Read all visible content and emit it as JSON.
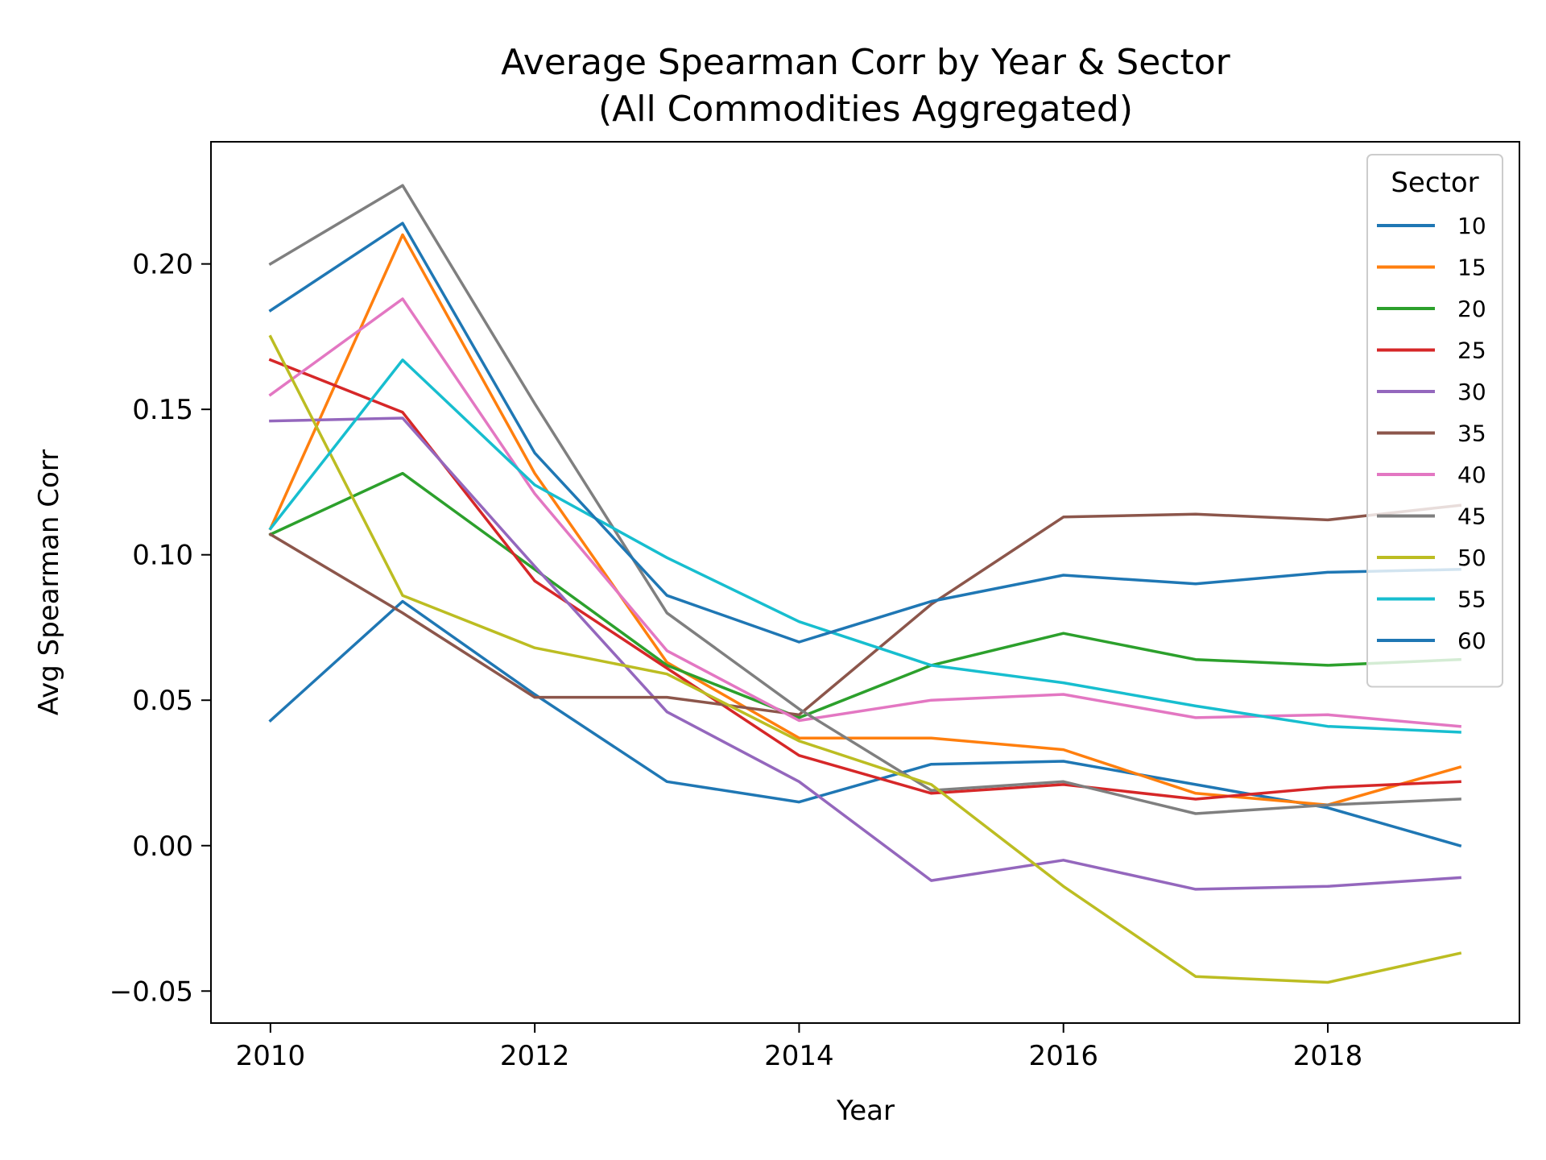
{
  "chart_data": {
    "type": "line",
    "title": "Average Spearman Corr by Year & Sector",
    "subtitle": "(All Commodities Aggregated)",
    "xlabel": "Year",
    "ylabel": "Avg Spearman Corr",
    "xlim": [
      2009.55,
      2019.45
    ],
    "ylim": [
      -0.061,
      0.242
    ],
    "xticks": [
      2010,
      2012,
      2014,
      2016,
      2018
    ],
    "yticks": [
      -0.05,
      0.0,
      0.05,
      0.1,
      0.15,
      0.2
    ],
    "ytick_labels": [
      "−0.05",
      "0.00",
      "0.05",
      "0.10",
      "0.15",
      "0.20"
    ],
    "grid": false,
    "legend": {
      "title": "Sector",
      "placement": "top-right"
    },
    "x": [
      2010,
      2011,
      2012,
      2013,
      2014,
      2015,
      2016,
      2017,
      2018,
      2019
    ],
    "series": [
      {
        "name": "10",
        "color": "#1f77b4",
        "values": [
          0.043,
          0.084,
          0.052,
          0.022,
          0.015,
          0.028,
          0.029,
          0.021,
          0.013,
          0.0
        ]
      },
      {
        "name": "15",
        "color": "#ff7f0e",
        "values": [
          0.109,
          0.21,
          0.128,
          0.063,
          0.037,
          0.037,
          0.033,
          0.018,
          0.014,
          0.027
        ]
      },
      {
        "name": "20",
        "color": "#2ca02c",
        "values": [
          0.107,
          0.128,
          0.095,
          0.062,
          0.044,
          0.062,
          0.073,
          0.064,
          0.062,
          0.064
        ]
      },
      {
        "name": "25",
        "color": "#d62728",
        "values": [
          0.167,
          0.149,
          0.091,
          0.061,
          0.031,
          0.018,
          0.021,
          0.016,
          0.02,
          0.022
        ]
      },
      {
        "name": "30",
        "color": "#9467bd",
        "values": [
          0.146,
          0.147,
          0.096,
          0.046,
          0.022,
          -0.012,
          -0.005,
          -0.015,
          -0.014,
          -0.011
        ]
      },
      {
        "name": "35",
        "color": "#8c564b",
        "values": [
          0.107,
          0.08,
          0.051,
          0.051,
          0.045,
          0.083,
          0.113,
          0.114,
          0.112,
          0.117
        ]
      },
      {
        "name": "40",
        "color": "#e377c2",
        "values": [
          0.155,
          0.188,
          0.121,
          0.067,
          0.043,
          0.05,
          0.052,
          0.044,
          0.045,
          0.041
        ]
      },
      {
        "name": "45",
        "color": "#7f7f7f",
        "values": [
          0.2,
          0.227,
          0.152,
          0.08,
          0.047,
          0.019,
          0.022,
          0.011,
          0.014,
          0.016
        ]
      },
      {
        "name": "50",
        "color": "#bcbd22",
        "values": [
          0.175,
          0.086,
          0.068,
          0.059,
          0.036,
          0.021,
          -0.014,
          -0.045,
          -0.047,
          -0.037
        ]
      },
      {
        "name": "55",
        "color": "#17becf",
        "values": [
          0.109,
          0.167,
          0.124,
          0.099,
          0.077,
          0.062,
          0.056,
          0.048,
          0.041,
          0.039
        ]
      },
      {
        "name": "60",
        "color": "#1f77b4",
        "values": [
          0.184,
          0.214,
          0.135,
          0.086,
          0.07,
          0.084,
          0.093,
          0.09,
          0.094,
          0.095
        ]
      }
    ]
  }
}
